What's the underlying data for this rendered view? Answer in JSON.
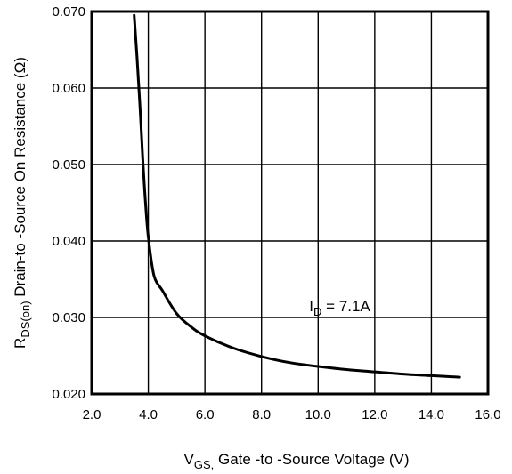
{
  "chart_data": {
    "type": "line",
    "title": "",
    "xlabel": {
      "main": "V",
      "sub": "GS,",
      "rest": " Gate -to -Source Voltage  (V)"
    },
    "ylabel": {
      "main": "R",
      "sub": "DS(on)",
      "rest": "  Drain-to -Source On Resistance (Ω)"
    },
    "xlim": [
      2.0,
      16.0
    ],
    "ylim": [
      0.02,
      0.07
    ],
    "xticks": [
      "2.0",
      "4.0",
      "6.0",
      "8.0",
      "10.0",
      "12.0",
      "14.0",
      "16.0"
    ],
    "yticks": [
      "0.020",
      "0.030",
      "0.040",
      "0.050",
      "0.060",
      "0.070"
    ],
    "grid": true,
    "annotation": {
      "main": "I",
      "sub": "D",
      "rest": " = 7.1A",
      "x": 10.0,
      "y": 0.0315
    },
    "series": [
      {
        "x": [
          3.5,
          3.6,
          3.7,
          3.8,
          3.9,
          4.0,
          4.2,
          4.5,
          5.0,
          5.5,
          6.0,
          7.0,
          8.0,
          9.0,
          10.0,
          11.0,
          12.0,
          13.0,
          14.0,
          15.0
        ],
        "values": [
          0.0695,
          0.064,
          0.058,
          0.051,
          0.045,
          0.0405,
          0.0355,
          0.0335,
          0.0305,
          0.0288,
          0.0276,
          0.026,
          0.0249,
          0.0241,
          0.0236,
          0.0232,
          0.0229,
          0.0226,
          0.0224,
          0.0222
        ]
      }
    ]
  }
}
